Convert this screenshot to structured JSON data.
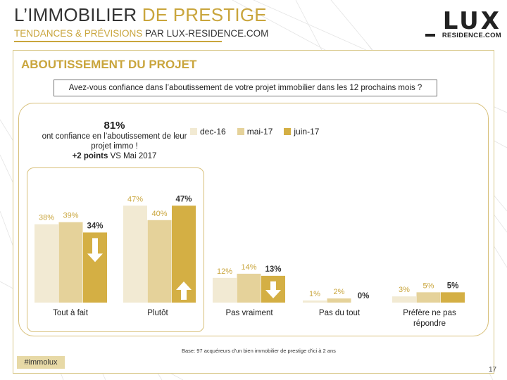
{
  "header": {
    "title_part1": "L’IMMOBILIER ",
    "title_part2": "DE PRESTIGE",
    "subtitle_part1": "TENDANCES & PRÉVISIONS ",
    "subtitle_part2": "PAR LUX-RESIDENCE.COM"
  },
  "logo": {
    "lux": "LUX",
    "residence": "RESIDENCE.COM"
  },
  "section_title": "ABOUTISSEMENT DU PROJET",
  "question": "Avez-vous confiance dans l’aboutissement de votre projet immobilier dans les 12 prochains mois ?",
  "callout": {
    "percent": "81%",
    "line1": "ont confiance en l’aboutissement de leur",
    "line2": "projet immo !",
    "delta_bold": "+2 points",
    "delta_rest": " VS Mai 2017"
  },
  "colors": {
    "accent": "#c9a53c",
    "dec16": "#f2ead3",
    "mai17": "#e5d29a",
    "juin17": "#d4af44",
    "arrow": "#ffffff"
  },
  "chart_data": {
    "type": "bar",
    "categories": [
      "Tout à fait",
      "Plutôt",
      "Pas vraiment",
      "Pas du tout",
      "Préfère ne pas répondre"
    ],
    "series": [
      {
        "name": "dec-16",
        "values": [
          38,
          47,
          12,
          1,
          3
        ],
        "labels": [
          "38%",
          "47%",
          "12%",
          "1%",
          "3%"
        ]
      },
      {
        "name": "mai-17",
        "values": [
          39,
          40,
          14,
          2,
          5
        ],
        "labels": [
          "39%",
          "40%",
          "14%",
          "2%",
          "5%"
        ]
      },
      {
        "name": "juin-17",
        "values": [
          34,
          47,
          13,
          0,
          5
        ],
        "labels": [
          "34%",
          "47%",
          "13%",
          "0%",
          "5%"
        ]
      }
    ],
    "trend_arrows": [
      "down",
      "up",
      "down",
      "none",
      "none"
    ],
    "ylim": [
      0,
      50
    ],
    "legend_position": "top"
  },
  "footer": {
    "base_note": "Base:  97 acquéreurs d’un bien immobilier de prestige d’ici à 2 ans",
    "hashtag": "#immolux",
    "page_number": "17"
  }
}
